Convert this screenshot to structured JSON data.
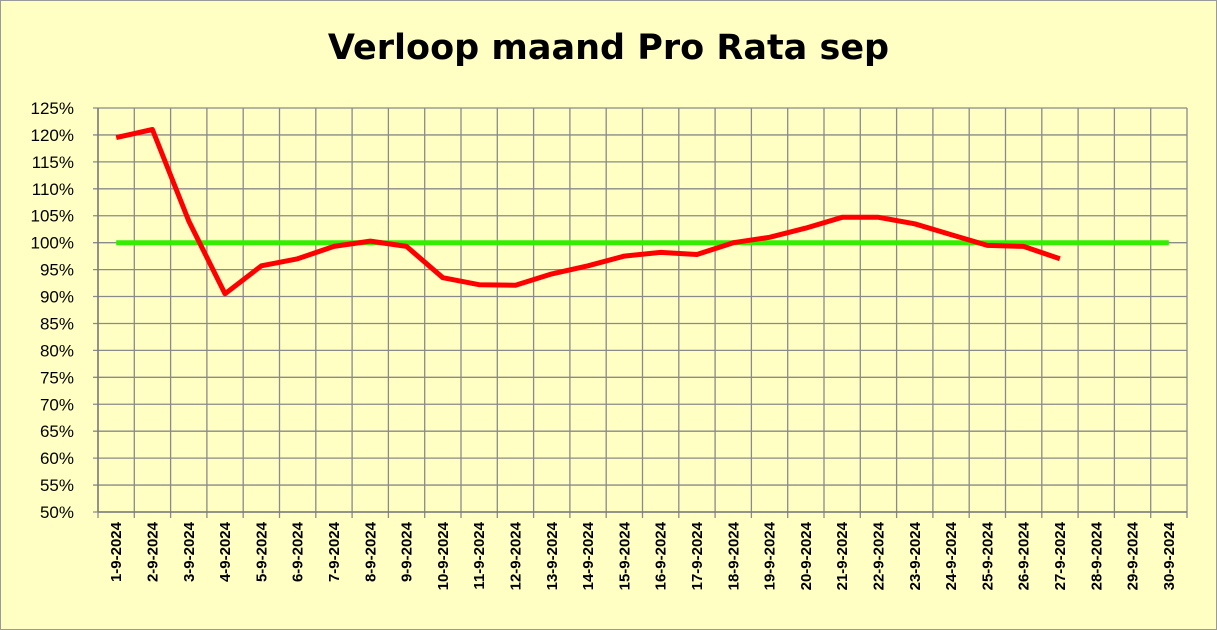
{
  "chart_data": {
    "type": "line",
    "title": "Verloop maand Pro Rata sep",
    "xlabel": "",
    "ylabel": "",
    "ylim": [
      0.5,
      1.25
    ],
    "y_ticks": [
      "50%",
      "55%",
      "60%",
      "65%",
      "70%",
      "75%",
      "80%",
      "85%",
      "90%",
      "95%",
      "100%",
      "105%",
      "110%",
      "115%",
      "120%",
      "125%"
    ],
    "categories": [
      "1-9-2024",
      "2-9-2024",
      "3-9-2024",
      "4-9-2024",
      "5-9-2024",
      "6-9-2024",
      "7-9-2024",
      "8-9-2024",
      "9-9-2024",
      "10-9-2024",
      "11-9-2024",
      "12-9-2024",
      "13-9-2024",
      "14-9-2024",
      "15-9-2024",
      "16-9-2024",
      "17-9-2024",
      "18-9-2024",
      "19-9-2024",
      "20-9-2024",
      "21-9-2024",
      "22-9-2024",
      "23-9-2024",
      "24-9-2024",
      "25-9-2024",
      "26-9-2024",
      "27-9-2024",
      "28-9-2024",
      "29-9-2024",
      "30-9-2024"
    ],
    "series": [
      {
        "color": "#ff0000",
        "values": [
          1.195,
          1.21,
          1.04,
          0.905,
          0.957,
          0.97,
          0.993,
          1.003,
          0.993,
          0.935,
          0.922,
          0.921,
          0.942,
          0.957,
          0.975,
          0.982,
          0.978,
          1.0,
          1.01,
          1.027,
          1.047,
          1.047,
          1.035,
          1.015,
          0.995,
          0.993,
          0.97,
          null,
          null,
          null
        ]
      },
      {
        "color": "#33ee00",
        "values": [
          1.0,
          1.0,
          1.0,
          1.0,
          1.0,
          1.0,
          1.0,
          1.0,
          1.0,
          1.0,
          1.0,
          1.0,
          1.0,
          1.0,
          1.0,
          1.0,
          1.0,
          1.0,
          1.0,
          1.0,
          1.0,
          1.0,
          1.0,
          1.0,
          1.0,
          1.0,
          1.0,
          1.0,
          1.0,
          1.0
        ]
      }
    ],
    "grid": true,
    "legend": "none",
    "plot_background": "#ffffc4",
    "grid_color": "#8a8a8a"
  }
}
